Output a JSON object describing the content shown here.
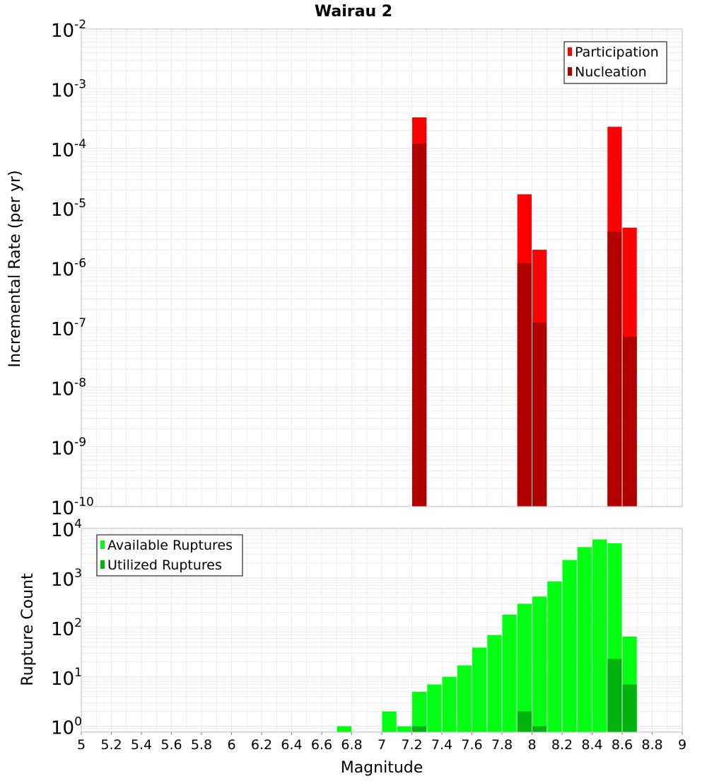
{
  "title": "Wairau 2",
  "xlabel": "Magnitude",
  "x_ticks": [
    "5",
    "5.2",
    "5.4",
    "5.6",
    "5.8",
    "6",
    "6.2",
    "6.4",
    "6.6",
    "6.8",
    "7",
    "7.2",
    "7.4",
    "7.6",
    "7.8",
    "8",
    "8.2",
    "8.4",
    "8.6",
    "8.8",
    "9"
  ],
  "colors": {
    "participation": "#ff0000",
    "nucleation": "#b00000",
    "available": "#00ff13",
    "utilized": "#00b30d",
    "grid": "#e6e6e6",
    "frame": "#bdbdbd"
  },
  "chart_data": [
    {
      "type": "bar",
      "scale": "log",
      "grid": true,
      "legend_position": "top-right",
      "title": "Wairau 2",
      "ylabel": "Incremental Rate (per yr)",
      "xlim": [
        5,
        9
      ],
      "ylim": [
        1e-10,
        0.01
      ],
      "y_tick_exponents": [
        "-2",
        "-3",
        "-4",
        "-5",
        "-6",
        "-7",
        "-8",
        "-9",
        "-10"
      ],
      "bar_width": 0.095,
      "series": [
        {
          "name": "Participation",
          "x": [
            7.25,
            7.95,
            8.05,
            8.55,
            8.65
          ],
          "values": [
            0.00033,
            1.7e-05,
            2e-06,
            0.00023,
            4.7e-06
          ]
        },
        {
          "name": "Nucleation",
          "x": [
            7.25,
            7.95,
            8.05,
            8.55,
            8.65
          ],
          "values": [
            0.00012,
            1.2e-06,
            1.2e-07,
            4e-06,
            7e-08
          ]
        }
      ]
    },
    {
      "type": "bar",
      "scale": "log",
      "grid": true,
      "legend_position": "top-left",
      "xlabel": "Magnitude",
      "ylabel": "Rupture Count",
      "xlim": [
        5,
        9
      ],
      "ylim": [
        0.76,
        10000
      ],
      "y_tick_exponents": [
        "4",
        "3",
        "2",
        "1",
        "0"
      ],
      "bar_width": 0.095,
      "series": [
        {
          "name": "Available Ruptures",
          "x": [
            6.75,
            7.05,
            7.15,
            7.25,
            7.35,
            7.45,
            7.55,
            7.65,
            7.75,
            7.85,
            7.95,
            8.05,
            8.15,
            8.25,
            8.35,
            8.45,
            8.55,
            8.65
          ],
          "values": [
            1,
            2,
            1,
            5,
            7,
            10,
            17,
            39,
            70,
            180,
            300,
            420,
            850,
            2300,
            4200,
            6000,
            5000,
            65
          ]
        },
        {
          "name": "Utilized Ruptures",
          "x": [
            7.25,
            7.95,
            8.05,
            8.55,
            8.65
          ],
          "values": [
            1,
            2,
            1,
            23,
            7
          ]
        }
      ]
    }
  ]
}
